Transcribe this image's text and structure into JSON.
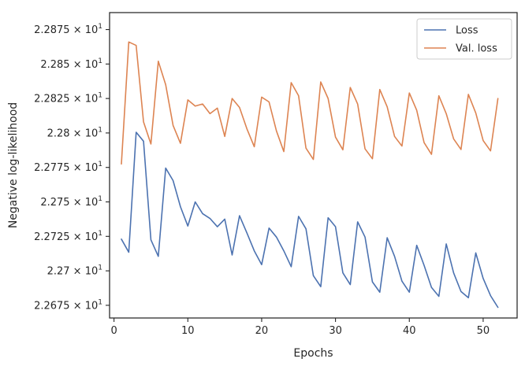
{
  "chart_data": {
    "type": "line",
    "title": "",
    "xlabel": "Epochs",
    "ylabel": "Negative log-likelihood",
    "xlim": [
      -0.6,
      54.6
    ],
    "ylim": [
      22.6658,
      22.8873
    ],
    "x_ticks": [
      0,
      10,
      20,
      30,
      40,
      50
    ],
    "x_tick_labels": [
      "0",
      "10",
      "20",
      "30",
      "40",
      "50"
    ],
    "y_ticks": [
      22.675,
      22.7,
      22.725,
      22.75,
      22.775,
      22.8,
      22.825,
      22.85,
      22.875
    ],
    "y_tick_mantissas": [
      "2.2675",
      "2.27",
      "2.2725",
      "2.275",
      "2.2775",
      "2.28",
      "2.2825",
      "2.285",
      "2.2875"
    ],
    "y_tick_base": "× 10",
    "y_tick_exponent": "1",
    "grid": false,
    "legend_position": "top-right",
    "x": [
      1,
      2,
      3,
      4,
      5,
      6,
      7,
      8,
      9,
      10,
      11,
      12,
      13,
      14,
      15,
      16,
      17,
      18,
      19,
      20,
      21,
      22,
      23,
      24,
      25,
      26,
      27,
      28,
      29,
      30,
      31,
      32,
      33,
      34,
      35,
      36,
      37,
      38,
      39,
      40,
      41,
      42,
      43,
      44,
      45,
      46,
      47,
      48,
      49,
      50,
      51,
      52
    ],
    "series": [
      {
        "name": "Loss",
        "color": "#4c72b0",
        "values": [
          22.723,
          22.7135,
          22.8005,
          22.794,
          22.7225,
          22.7105,
          22.7745,
          22.7655,
          22.7465,
          22.7325,
          22.75,
          22.7415,
          22.738,
          22.732,
          22.7375,
          22.7115,
          22.74,
          22.7275,
          22.7145,
          22.7045,
          22.731,
          22.7245,
          22.7145,
          22.703,
          22.7395,
          22.7305,
          22.6965,
          22.6885,
          22.7385,
          22.732,
          22.6985,
          22.69,
          22.7355,
          22.7245,
          22.692,
          22.6845,
          22.724,
          22.7105,
          22.6925,
          22.6845,
          22.7185,
          22.704,
          22.688,
          22.6815,
          22.7195,
          22.6985,
          22.685,
          22.6805,
          22.713,
          22.6945,
          22.682,
          22.6735
        ]
      },
      {
        "name": "Val. loss",
        "color": "#dd8452",
        "values": [
          22.7775,
          22.866,
          22.8635,
          22.808,
          22.792,
          22.852,
          22.835,
          22.8055,
          22.7925,
          22.824,
          22.8195,
          22.821,
          22.814,
          22.818,
          22.7975,
          22.825,
          22.8185,
          22.803,
          22.79,
          22.826,
          22.8225,
          22.8015,
          22.7865,
          22.8365,
          22.827,
          22.789,
          22.7808,
          22.837,
          22.825,
          22.797,
          22.7878,
          22.833,
          22.821,
          22.7885,
          22.7813,
          22.8315,
          22.819,
          22.7975,
          22.7905,
          22.829,
          22.8165,
          22.793,
          22.7845,
          22.827,
          22.814,
          22.7957,
          22.788,
          22.828,
          22.8145,
          22.7945,
          22.787,
          22.825
        ]
      }
    ]
  }
}
